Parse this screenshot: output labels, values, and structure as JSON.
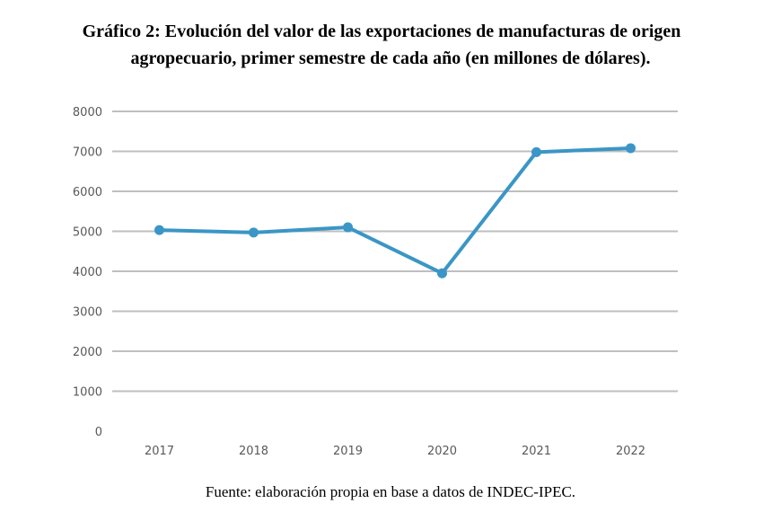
{
  "title": {
    "line1": "Gráfico 2: Evolución del valor de las exportaciones de manufacturas de origen",
    "line2": "agropecuario, primer semestre de cada año (en millones de dólares)."
  },
  "source": "Fuente: elaboración propia en base a datos de INDEC-IPEC.",
  "colors": {
    "series": "#3a96c6",
    "grid": "#bfbfbf",
    "tick_text": "#595959"
  },
  "chart_data": {
    "type": "line",
    "title": "Gráfico 2: Evolución del valor de las exportaciones de manufacturas de origen agropecuario, primer semestre de cada año (en millones de dólares).",
    "xlabel": "",
    "ylabel": "",
    "categories": [
      "2017",
      "2018",
      "2019",
      "2020",
      "2021",
      "2022"
    ],
    "series": [
      {
        "values": [
          5030,
          4970,
          5100,
          3950,
          6980,
          7080
        ]
      }
    ],
    "ylim": [
      0,
      8000
    ],
    "yticks": [
      0,
      1000,
      2000,
      3000,
      4000,
      5000,
      6000,
      7000,
      8000
    ],
    "grid": true,
    "legend": "none",
    "markers": true
  }
}
